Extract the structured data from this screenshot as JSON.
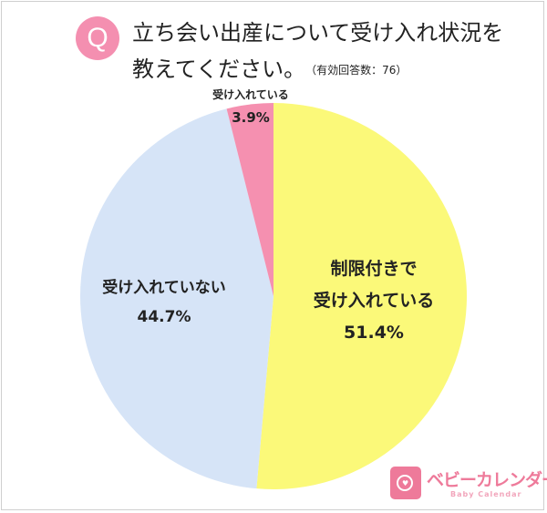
{
  "question": {
    "badge": "Q",
    "line1": "立ち会い出産について受け入れ状況を",
    "line2": "教えてください。",
    "note": "（有効回答数：76）"
  },
  "colors": {
    "accepted_with_limits": "#fbf979",
    "not_accepted": "#d6e4f7",
    "fully_accepted": "#f590b0",
    "badge": "#f48fb0"
  },
  "labels": {
    "accepted_with_limits": {
      "line1": "制限付きで",
      "line2": "受け入れている",
      "pct": "51.4%"
    },
    "not_accepted": {
      "name": "受け入れていない",
      "pct": "44.7%"
    },
    "fully_accepted": {
      "name": "受け入れている",
      "pct": "3.9%"
    }
  },
  "logo": {
    "text": "ベビーカレンダー",
    "sub": "Baby Calendar"
  },
  "chart_data": {
    "type": "pie",
    "title": "立ち会い出産について受け入れ状況を教えてください。（有効回答数：76）",
    "categories": [
      "制限付きで受け入れている",
      "受け入れていない",
      "受け入れている"
    ],
    "values": [
      51.4,
      44.7,
      3.9
    ],
    "unit": "%",
    "n": 76,
    "start_angle": "12 o'clock, clockwise",
    "legend": "none (inline labels)"
  }
}
